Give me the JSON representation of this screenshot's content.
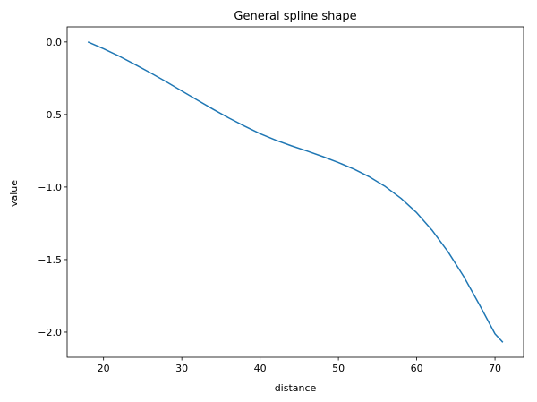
{
  "chart_data": {
    "type": "line",
    "title": "General spline shape",
    "xlabel": "distance",
    "ylabel": "value",
    "xlim": [
      15.35,
      73.65
    ],
    "ylim": [
      -2.173,
      0.104
    ],
    "xticks": [
      20,
      30,
      40,
      50,
      60,
      70
    ],
    "yticks": [
      0.0,
      -0.5,
      -1.0,
      -1.5,
      -2.0
    ],
    "xtick_labels": [
      "20",
      "30",
      "40",
      "50",
      "60",
      "70"
    ],
    "ytick_labels": [
      "0.0",
      "−0.5",
      "−1.0",
      "−1.5",
      "−2.0"
    ],
    "grid": false,
    "series": [
      {
        "color": "#1f77b4",
        "x": [
          18,
          20,
          22,
          24,
          26,
          28,
          30,
          32,
          34,
          36,
          38,
          40,
          42,
          44,
          46,
          48,
          50,
          52,
          54,
          56,
          58,
          60,
          62,
          64,
          66,
          68,
          70,
          71
        ],
        "y": [
          0.0,
          -0.047,
          -0.098,
          -0.155,
          -0.213,
          -0.274,
          -0.338,
          -0.401,
          -0.464,
          -0.524,
          -0.58,
          -0.632,
          -0.677,
          -0.716,
          -0.752,
          -0.79,
          -0.831,
          -0.877,
          -0.931,
          -0.997,
          -1.078,
          -1.177,
          -1.3,
          -1.446,
          -1.616,
          -1.81,
          -2.012,
          -2.07
        ]
      }
    ]
  }
}
